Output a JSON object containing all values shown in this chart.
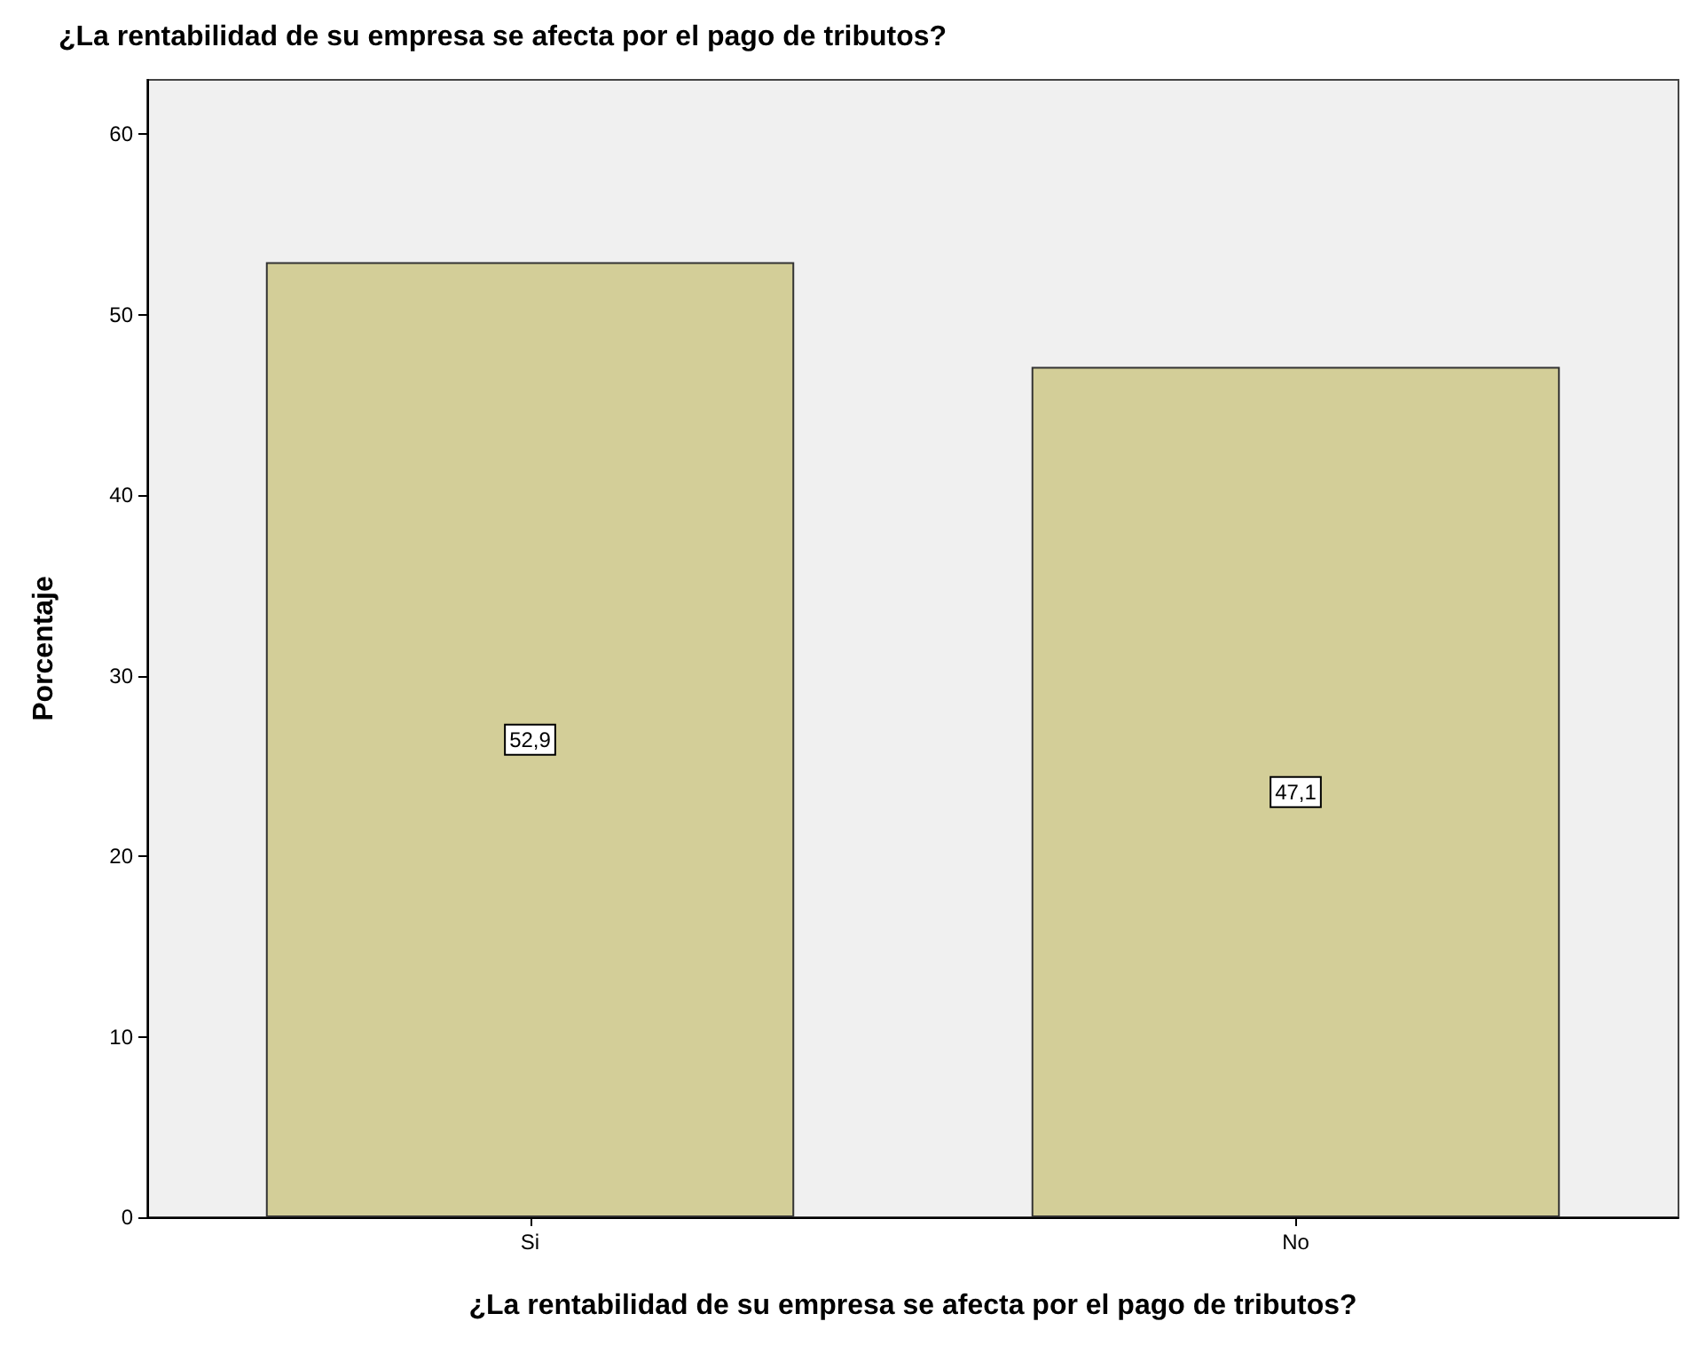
{
  "chart_data": {
    "type": "bar",
    "title": "¿La rentabilidad de su empresa se afecta por el pago de tributos?",
    "xlabel": "¿La rentabilidad de su empresa se afecta por el pago de tributos?",
    "ylabel": "Porcentaje",
    "categories": [
      "Si",
      "No"
    ],
    "values": [
      52.9,
      47.1
    ],
    "value_labels": [
      "52,9",
      "47,1"
    ],
    "color": "#d3ce98",
    "ylim": [
      0,
      63
    ],
    "yticks": [
      0,
      10,
      20,
      30,
      40,
      50,
      60
    ],
    "grid": false
  }
}
